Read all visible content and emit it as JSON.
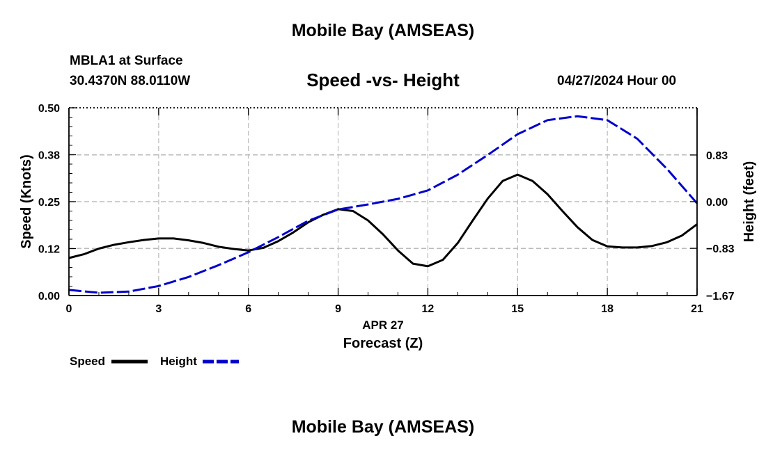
{
  "header": {
    "title": "Mobile Bay (AMSEAS)",
    "station": "MBLA1 at Surface",
    "coordinates": "30.4370N  88.0110W",
    "datetime": "04/27/2024 Hour 00"
  },
  "footer": {
    "title": "Mobile Bay (AMSEAS)"
  },
  "chart_data": {
    "type": "line",
    "title": "Speed -vs- Height",
    "xlabel": "Forecast (Z)",
    "xsublabel": "APR 27",
    "ylabel": "Speed (Knots)",
    "y2label": "Height (feet)",
    "xlim": [
      0,
      21
    ],
    "ylim": [
      0,
      0.5
    ],
    "y2lim": [
      -1.67,
      1.67
    ],
    "x_ticks": [
      0,
      3,
      6,
      9,
      12,
      15,
      18,
      21
    ],
    "x_tick_labels": [
      "0",
      "3",
      "6",
      "9",
      "12",
      "15",
      "18",
      "21"
    ],
    "y_ticks": [
      0,
      0.125,
      0.25,
      0.375,
      0.5
    ],
    "y_tick_labels": [
      "0.00",
      "0.12",
      "0.25",
      "0.38",
      "0.50"
    ],
    "y2_ticks": [
      -1.67,
      -0.83,
      0,
      0.83
    ],
    "y2_tick_labels": [
      "−1.67",
      "−0.83",
      "0.00",
      "0.83"
    ],
    "grid": true,
    "legend_position": "bottom-left",
    "series": [
      {
        "name": "Speed",
        "axis": "left",
        "color": "#000000",
        "style": "solid",
        "x": [
          0,
          0.5,
          1,
          1.5,
          2,
          2.5,
          3,
          3.5,
          4,
          4.5,
          5,
          5.5,
          6,
          6.5,
          7,
          7.5,
          8,
          8.5,
          9,
          9.5,
          10,
          10.5,
          11,
          11.5,
          12,
          12.5,
          13,
          13.5,
          14,
          14.5,
          15,
          15.5,
          16,
          16.5,
          17,
          17.5,
          18,
          18.5,
          19,
          19.5,
          20,
          20.5,
          21
        ],
        "values": [
          0.1,
          0.11,
          0.125,
          0.135,
          0.142,
          0.148,
          0.152,
          0.152,
          0.147,
          0.14,
          0.13,
          0.124,
          0.12,
          0.127,
          0.145,
          0.168,
          0.195,
          0.215,
          0.23,
          0.225,
          0.2,
          0.163,
          0.12,
          0.085,
          0.078,
          0.095,
          0.14,
          0.2,
          0.258,
          0.305,
          0.322,
          0.305,
          0.27,
          0.225,
          0.182,
          0.148,
          0.131,
          0.128,
          0.128,
          0.132,
          0.142,
          0.16,
          0.19
        ]
      },
      {
        "name": "Height",
        "axis": "right",
        "color": "#0000cc",
        "style": "dashed",
        "x": [
          0,
          1,
          2,
          3,
          4,
          5,
          6,
          7,
          8,
          9,
          10,
          11,
          12,
          13,
          14,
          15,
          16,
          17,
          18,
          19,
          20,
          21
        ],
        "values": [
          -1.57,
          -1.62,
          -1.6,
          -1.5,
          -1.34,
          -1.13,
          -0.9,
          -0.63,
          -0.34,
          -0.14,
          -0.05,
          0.05,
          0.2,
          0.48,
          0.83,
          1.2,
          1.45,
          1.52,
          1.45,
          1.12,
          0.58,
          -0.03
        ]
      }
    ]
  }
}
